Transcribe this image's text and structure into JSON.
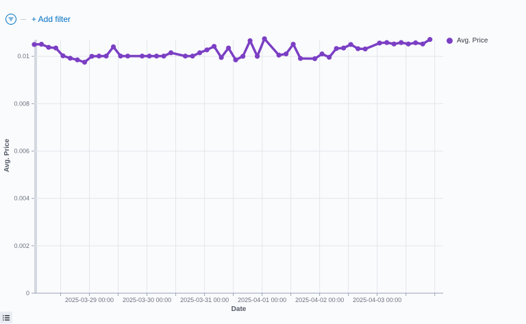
{
  "toolbar": {
    "add_filter_label": "+ Add filter",
    "filter_icon": "filter-icon"
  },
  "legend_toggle_icon": "list-icon",
  "colors": {
    "series": "#7b3fc4",
    "accent": "#0071c2",
    "grid": "#e3e6eb"
  },
  "chart_data": {
    "type": "line",
    "xlabel": "Date",
    "ylabel": "Avg. Price",
    "ylim": [
      0,
      0.0107
    ],
    "yticks": [
      0,
      0.002,
      0.004,
      0.006,
      0.008,
      0.01
    ],
    "ytick_labels": [
      "0",
      "0.002",
      "0.004",
      "0.006",
      "0.008",
      "0.01"
    ],
    "xlim": [
      "2025-03-28 01:00",
      "2025-04-04 03:30"
    ],
    "xticks": [
      "2025-03-29 00:00",
      "2025-03-30 00:00",
      "2025-03-31 00:00",
      "2025-04-01 00:00",
      "2025-04-02 00:00",
      "2025-04-03 00:00"
    ],
    "grid": true,
    "legend_position": "top-right",
    "series": [
      {
        "name": "Avg. Price",
        "color": "#7b3fc4",
        "points": [
          [
            "2025-03-28 01:00",
            0.0105
          ],
          [
            "2025-03-28 04:00",
            0.01051
          ],
          [
            "2025-03-28 07:00",
            0.01038
          ],
          [
            "2025-03-28 10:00",
            0.01035
          ],
          [
            "2025-03-28 13:00",
            0.01002
          ],
          [
            "2025-03-28 16:00",
            0.00992
          ],
          [
            "2025-03-28 19:00",
            0.00985
          ],
          [
            "2025-03-28 22:00",
            0.00975
          ],
          [
            "2025-03-29 01:00",
            0.01
          ],
          [
            "2025-03-29 04:00",
            0.01001
          ],
          [
            "2025-03-29 07:00",
            0.01001
          ],
          [
            "2025-03-29 10:00",
            0.0104
          ],
          [
            "2025-03-29 13:00",
            0.01001
          ],
          [
            "2025-03-29 16:00",
            0.01001
          ],
          [
            "2025-03-29 22:00",
            0.01001
          ],
          [
            "2025-03-30 01:00",
            0.01001
          ],
          [
            "2025-03-30 04:00",
            0.01001
          ],
          [
            "2025-03-30 07:00",
            0.01001
          ],
          [
            "2025-03-30 10:00",
            0.01015
          ],
          [
            "2025-03-30 16:00",
            0.01001
          ],
          [
            "2025-03-30 19:00",
            0.01001
          ],
          [
            "2025-03-30 22:00",
            0.01015
          ],
          [
            "2025-03-31 01:00",
            0.01027
          ],
          [
            "2025-03-31 04:00",
            0.01042
          ],
          [
            "2025-03-31 07:00",
            0.00995
          ],
          [
            "2025-03-31 10:00",
            0.01035
          ],
          [
            "2025-03-31 13:00",
            0.00985
          ],
          [
            "2025-03-31 16:00",
            0.01
          ],
          [
            "2025-03-31 19:00",
            0.01066
          ],
          [
            "2025-03-31 22:00",
            0.01
          ],
          [
            "2025-04-01 01:00",
            0.01074
          ],
          [
            "2025-04-01 07:00",
            0.01005
          ],
          [
            "2025-04-01 10:00",
            0.0101
          ],
          [
            "2025-04-01 13:00",
            0.01051
          ],
          [
            "2025-04-01 16:00",
            0.00991
          ],
          [
            "2025-04-01 22:00",
            0.0099
          ],
          [
            "2025-04-02 01:00",
            0.0101
          ],
          [
            "2025-04-02 04:00",
            0.00996
          ],
          [
            "2025-04-02 07:00",
            0.01033
          ],
          [
            "2025-04-02 10:00",
            0.01035
          ],
          [
            "2025-04-02 13:00",
            0.0105
          ],
          [
            "2025-04-02 16:00",
            0.01032
          ],
          [
            "2025-04-02 19:00",
            0.01031
          ],
          [
            "2025-04-03 01:00",
            0.01056
          ],
          [
            "2025-04-03 04:00",
            0.01058
          ],
          [
            "2025-04-03 07:00",
            0.01052
          ],
          [
            "2025-04-03 10:00",
            0.01058
          ],
          [
            "2025-04-03 13:00",
            0.01052
          ],
          [
            "2025-04-03 16:00",
            0.01057
          ],
          [
            "2025-04-03 19:00",
            0.01052
          ],
          [
            "2025-04-03 22:00",
            0.01071
          ]
        ]
      }
    ]
  }
}
